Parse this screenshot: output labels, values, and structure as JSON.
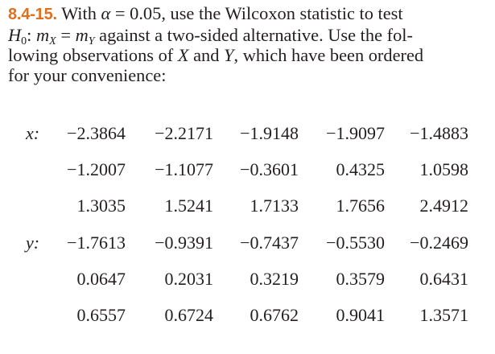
{
  "problem": {
    "number": "8.4-15.",
    "line1_a": " With ",
    "alpha": "α",
    "line1_b": " = 0.05, use the Wilcoxon statistic to test",
    "h0_H": "H",
    "h0_sub": "0",
    "h0_colon": ": ",
    "m": "m",
    "sub_x": "X",
    "eq": " = ",
    "sub_y": "Y",
    "line2_rest": " against a two-sided alternative. Use the fol-",
    "line3_a": "lowing observations of ",
    "var_x": "X",
    "line3_b": " and ",
    "var_y": "Y",
    "line3_c": ", which have been ordered",
    "line4": "for your convenience:"
  },
  "data": {
    "x_label": "x:",
    "y_label": "y:",
    "x_rows": [
      [
        "−2.3864",
        "−2.2171",
        "−1.9148",
        "−1.9097",
        "−1.4883"
      ],
      [
        "−1.2007",
        "−1.1077",
        "−0.3601",
        "0.4325",
        "1.0598"
      ],
      [
        "1.3035",
        "1.5241",
        "1.7133",
        "1.7656",
        "2.4912"
      ]
    ],
    "y_rows": [
      [
        "−1.7613",
        "−0.9391",
        "−0.7437",
        "−0.5530",
        "−0.2469"
      ],
      [
        "0.0647",
        "0.2031",
        "0.3219",
        "0.3579",
        "0.6431"
      ],
      [
        "0.6557",
        "0.6724",
        "0.6762",
        "0.9041",
        "1.3571"
      ]
    ]
  }
}
